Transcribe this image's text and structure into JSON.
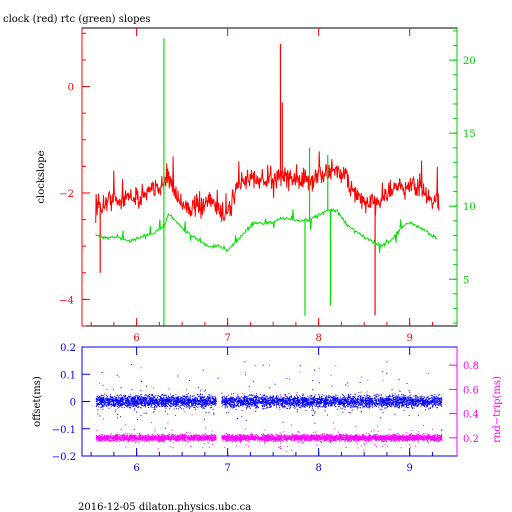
{
  "title": "clock (red) rtc (green) slopes",
  "footer": "2016-12-05  dilaton.physics.ubc.ca",
  "colors": {
    "clock": "#ff0000",
    "rtc": "#00e000",
    "offset": "#0000ff",
    "rndtrip": "#ff00ff",
    "frame": "#000000",
    "top_left_axis": "#ff0000",
    "top_right_axis": "#00cc00",
    "bottom_axis": "#0000ff"
  },
  "chart_data": [
    {
      "type": "line",
      "title": "clock (red) rtc (green) slopes",
      "ylabel_left": "clockslope",
      "ylabel_right": "",
      "xlim": [
        5.4,
        9.52
      ],
      "ylim_left": [
        -4.5,
        1.1
      ],
      "ylim_right": [
        1.8,
        22.2
      ],
      "x_ticks": [
        6,
        7,
        8,
        9
      ],
      "x_tick_labels": [
        "6",
        "7",
        "8",
        "9"
      ],
      "y_left_ticks": [
        0,
        -2,
        -4
      ],
      "y_left_tick_labels": [
        "0",
        "−2",
        "−4"
      ],
      "y_right_ticks": [
        5,
        10,
        15,
        20
      ],
      "y_right_tick_labels": [
        "5",
        "10",
        "15",
        "20"
      ],
      "grid": false,
      "series": [
        {
          "axis": "left",
          "x": [
            5.55,
            5.62,
            5.7,
            5.8,
            5.9,
            6.0,
            6.1,
            6.2,
            6.3,
            6.35,
            6.4,
            6.5,
            6.6,
            6.7,
            6.8,
            6.9,
            6.95,
            7.0,
            7.1,
            7.2,
            7.3,
            7.4,
            7.5,
            7.6,
            7.7,
            7.8,
            7.9,
            8.0,
            8.1,
            8.2,
            8.3,
            8.4,
            8.5,
            8.6,
            8.7,
            8.8,
            8.9,
            9.0,
            9.1,
            9.2,
            9.25,
            9.32
          ],
          "values": [
            -2.2,
            -2.25,
            -2.1,
            -2.15,
            -2.05,
            -2.1,
            -2.0,
            -1.95,
            -1.8,
            -1.7,
            -1.9,
            -2.2,
            -2.3,
            -2.25,
            -2.15,
            -2.3,
            -2.4,
            -2.35,
            -1.9,
            -1.75,
            -1.7,
            -1.8,
            -1.75,
            -1.65,
            -1.7,
            -1.75,
            -1.8,
            -1.65,
            -1.6,
            -1.55,
            -1.7,
            -2.0,
            -2.2,
            -2.2,
            -2.1,
            -1.95,
            -1.9,
            -1.85,
            -1.9,
            -2.05,
            -2.15,
            -2.1
          ],
          "spikes": [
            [
              6.32,
              -1.7
            ],
            [
              7.58,
              0.8
            ],
            [
              7.6,
              -0.3
            ],
            [
              8.62,
              -4.3
            ],
            [
              5.6,
              -3.5
            ]
          ]
        },
        {
          "axis": "right",
          "x": [
            5.55,
            5.65,
            5.8,
            5.9,
            6.0,
            6.1,
            6.2,
            6.3,
            6.35,
            6.4,
            6.5,
            6.6,
            6.7,
            6.8,
            6.9,
            7.0,
            7.1,
            7.2,
            7.3,
            7.4,
            7.5,
            7.6,
            7.7,
            7.8,
            7.9,
            8.0,
            8.1,
            8.2,
            8.3,
            8.4,
            8.5,
            8.6,
            8.7,
            8.8,
            8.9,
            9.0,
            9.1,
            9.2,
            9.3
          ],
          "values": [
            8.0,
            7.8,
            7.9,
            7.6,
            7.8,
            8.0,
            8.2,
            8.6,
            9.5,
            9.2,
            8.5,
            8.0,
            7.6,
            7.2,
            7.3,
            7.0,
            7.6,
            8.3,
            8.9,
            8.8,
            8.9,
            9.2,
            9.1,
            9.0,
            9.1,
            9.4,
            9.7,
            9.7,
            8.8,
            8.3,
            7.9,
            7.5,
            7.3,
            7.7,
            8.5,
            8.9,
            8.6,
            8.2,
            7.8
          ],
          "spikes": [
            [
              6.3,
              21.5
            ],
            [
              6.3,
              1.8
            ],
            [
              7.85,
              2.5
            ],
            [
              7.9,
              14.0
            ],
            [
              8.1,
              13.5
            ],
            [
              8.13,
              3.2
            ]
          ]
        }
      ]
    },
    {
      "type": "scatter",
      "ylabel_left": "offset(ms)",
      "ylabel_right": "rnd−trip(ms)",
      "xlim": [
        5.4,
        9.52
      ],
      "ylim_left": [
        -0.2,
        0.2
      ],
      "ylim_right": [
        0.05,
        0.95
      ],
      "x_ticks": [
        6,
        7,
        8,
        9
      ],
      "x_tick_labels": [
        "6",
        "7",
        "8",
        "9"
      ],
      "y_left_ticks": [
        0.2,
        0.1,
        0,
        -0.1,
        -0.2
      ],
      "y_left_tick_labels": [
        "0.2",
        "0.1",
        "0",
        "−0.1",
        "−0.2"
      ],
      "y_right_ticks": [
        0.2,
        0.4,
        0.6,
        0.8
      ],
      "y_right_tick_labels": [
        "0.2",
        "0.4",
        "0.6",
        "0.8"
      ],
      "grid": false,
      "series": [
        {
          "axis": "left",
          "x_range": [
            5.55,
            9.35
          ],
          "gap": [
            6.87,
            6.93
          ],
          "center": 0.0,
          "spread": 0.02
        },
        {
          "axis": "right",
          "x_range": [
            5.55,
            9.35
          ],
          "gap": [
            6.87,
            6.93
          ],
          "center": 0.2,
          "spread": 0.025
        }
      ]
    }
  ]
}
